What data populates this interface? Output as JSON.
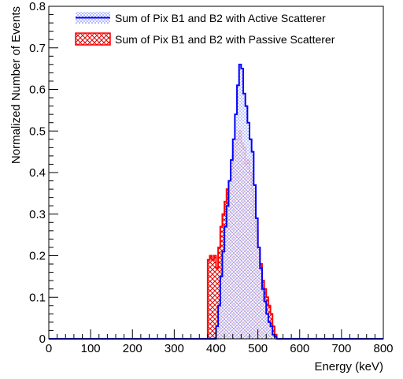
{
  "chart_data": {
    "type": "histogram",
    "xlabel": "Energy (keV)",
    "ylabel": "Normalized Number of Events",
    "xlim": [
      0,
      800
    ],
    "ylim": [
      0,
      0.8
    ],
    "x_ticks": [
      0,
      100,
      200,
      300,
      400,
      500,
      600,
      700,
      800
    ],
    "x_tick_labels": [
      "0",
      "100",
      "200",
      "300",
      "400",
      "500",
      "600",
      "700",
      "800"
    ],
    "y_ticks": [
      0,
      0.1,
      0.2,
      0.3,
      0.4,
      0.5,
      0.6,
      0.7,
      0.8
    ],
    "y_tick_labels": [
      "0",
      "0.1",
      "0.2",
      "0.3",
      "0.4",
      "0.5",
      "0.6",
      "0.7",
      "0.8"
    ],
    "bin_width": 5,
    "grid": false,
    "legend_position": "top-left",
    "series": [
      {
        "name": "Sum of Pix B1 and B2 with Passive Scatterer",
        "color": "#ff0000",
        "fill": "crosshatch",
        "bins_start": 380,
        "values": [
          0.19,
          0.2,
          0.19,
          0.2,
          0.17,
          0.22,
          0.27,
          0.3,
          0.33,
          0.36,
          0.38,
          0.41,
          0.44,
          0.47,
          0.48,
          0.5,
          0.47,
          0.46,
          0.42,
          0.43,
          0.4,
          0.36,
          0.29,
          0.26,
          0.22,
          0.18,
          0.14,
          0.12,
          0.1,
          0.08,
          0.06,
          0.03,
          0.01,
          0.0,
          0.0,
          0.0
        ]
      },
      {
        "name": "Sum of Pix B1 and B2 with Active Scatterer",
        "color": "#0000ff",
        "fill": "dots",
        "bins_start": 380,
        "values": [
          0.0,
          0.0,
          0.0,
          0.0,
          0.03,
          0.08,
          0.15,
          0.21,
          0.27,
          0.32,
          0.38,
          0.43,
          0.48,
          0.54,
          0.61,
          0.66,
          0.65,
          0.59,
          0.56,
          0.52,
          0.48,
          0.45,
          0.37,
          0.29,
          0.22,
          0.17,
          0.12,
          0.09,
          0.06,
          0.04,
          0.03,
          0.01,
          0.005,
          0.0,
          0.0,
          0.0
        ]
      }
    ]
  }
}
